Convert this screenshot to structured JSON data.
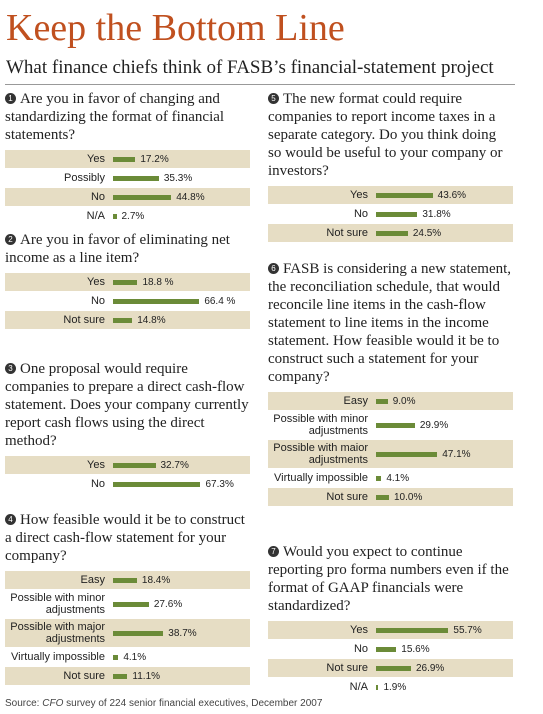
{
  "title": "Keep the Bottom Line",
  "subtitle": "What finance chiefs think of FASB’s financial-statement project",
  "source": {
    "label": "Source:",
    "publication": "CFO",
    "text": "survey of 224 senior financial executives, December 2007"
  },
  "chart_data": [
    {
      "type": "bar",
      "number": 1,
      "title": "Are you in favor of changing and standardizing the format of financial statements?",
      "color": "#6b8b38",
      "categories": [
        "Yes",
        "Possibly",
        "No",
        "N/A"
      ],
      "values": [
        17.2,
        35.3,
        44.8,
        2.7
      ],
      "value_labels": [
        "17.2%",
        "35.3%",
        "44.8%",
        "2.7%"
      ]
    },
    {
      "type": "bar",
      "number": 2,
      "title": "Are you in favor of eliminating net income as a line item?",
      "color": "#6b8b38",
      "categories": [
        "Yes",
        "No",
        "Not sure"
      ],
      "values": [
        18.8,
        66.4,
        14.8
      ],
      "value_labels": [
        "18.8 %",
        "66.4 %",
        "14.8%"
      ]
    },
    {
      "type": "bar",
      "number": 3,
      "title": "One proposal would require companies to prepare a direct cash-flow statement. Does your company currently report cash flows using the direct method?",
      "color": "#6b8b38",
      "categories": [
        "Yes",
        "No"
      ],
      "values": [
        32.7,
        67.3
      ],
      "value_labels": [
        "32.7%",
        "67.3%"
      ]
    },
    {
      "type": "bar",
      "number": 4,
      "title": "How feasible would it be to con­struct a direct cash-flow statement for your company?",
      "color": "#6b8b38",
      "categories": [
        "Easy",
        "Possible with minor adjustments",
        "Possible with major adjustments",
        "Virtually impossible",
        "Not sure"
      ],
      "values": [
        18.4,
        27.6,
        38.7,
        4.1,
        11.1
      ],
      "value_labels": [
        "18.4%",
        "27.6%",
        "38.7%",
        "4.1%",
        "11.1%"
      ]
    },
    {
      "type": "bar",
      "number": 5,
      "title": "The new format could require companies to report income taxes in a separate category. Do you think doing so would be useful to your company or investors?",
      "color": "#6b8b38",
      "categories": [
        "Yes",
        "No",
        "Not sure"
      ],
      "values": [
        43.6,
        31.8,
        24.5
      ],
      "value_labels": [
        "43.6%",
        "31.8%",
        "24.5%"
      ]
    },
    {
      "type": "bar",
      "number": 6,
      "title": "FASB is considering a new statement, the reconciliation schedule, that would reconcile line items in the cash-flow statement to line items in the income statement. How feasible would it be to construct such a statement for your company?",
      "color": "#6b8b38",
      "categories": [
        "Easy",
        "Possible with minor adjustments",
        "Possible with maior adjustments",
        "Virtually impossible",
        "Not sure"
      ],
      "values": [
        9.0,
        29.9,
        47.1,
        4.1,
        10.0
      ],
      "value_labels": [
        "9.0%",
        "29.9%",
        "47.1%",
        "4.1%",
        "10.0%"
      ]
    },
    {
      "type": "bar",
      "number": 7,
      "title": "Would you expect to continue reporting pro forma numbers even if the format of GAAP financials were standardized?",
      "color": "#6b8b38",
      "categories": [
        "Yes",
        "No",
        "Not sure",
        "N/A"
      ],
      "values": [
        55.7,
        15.6,
        26.9,
        1.9
      ],
      "value_labels": [
        "55.7%",
        "15.6%",
        "26.9%",
        "1.9%"
      ]
    }
  ]
}
